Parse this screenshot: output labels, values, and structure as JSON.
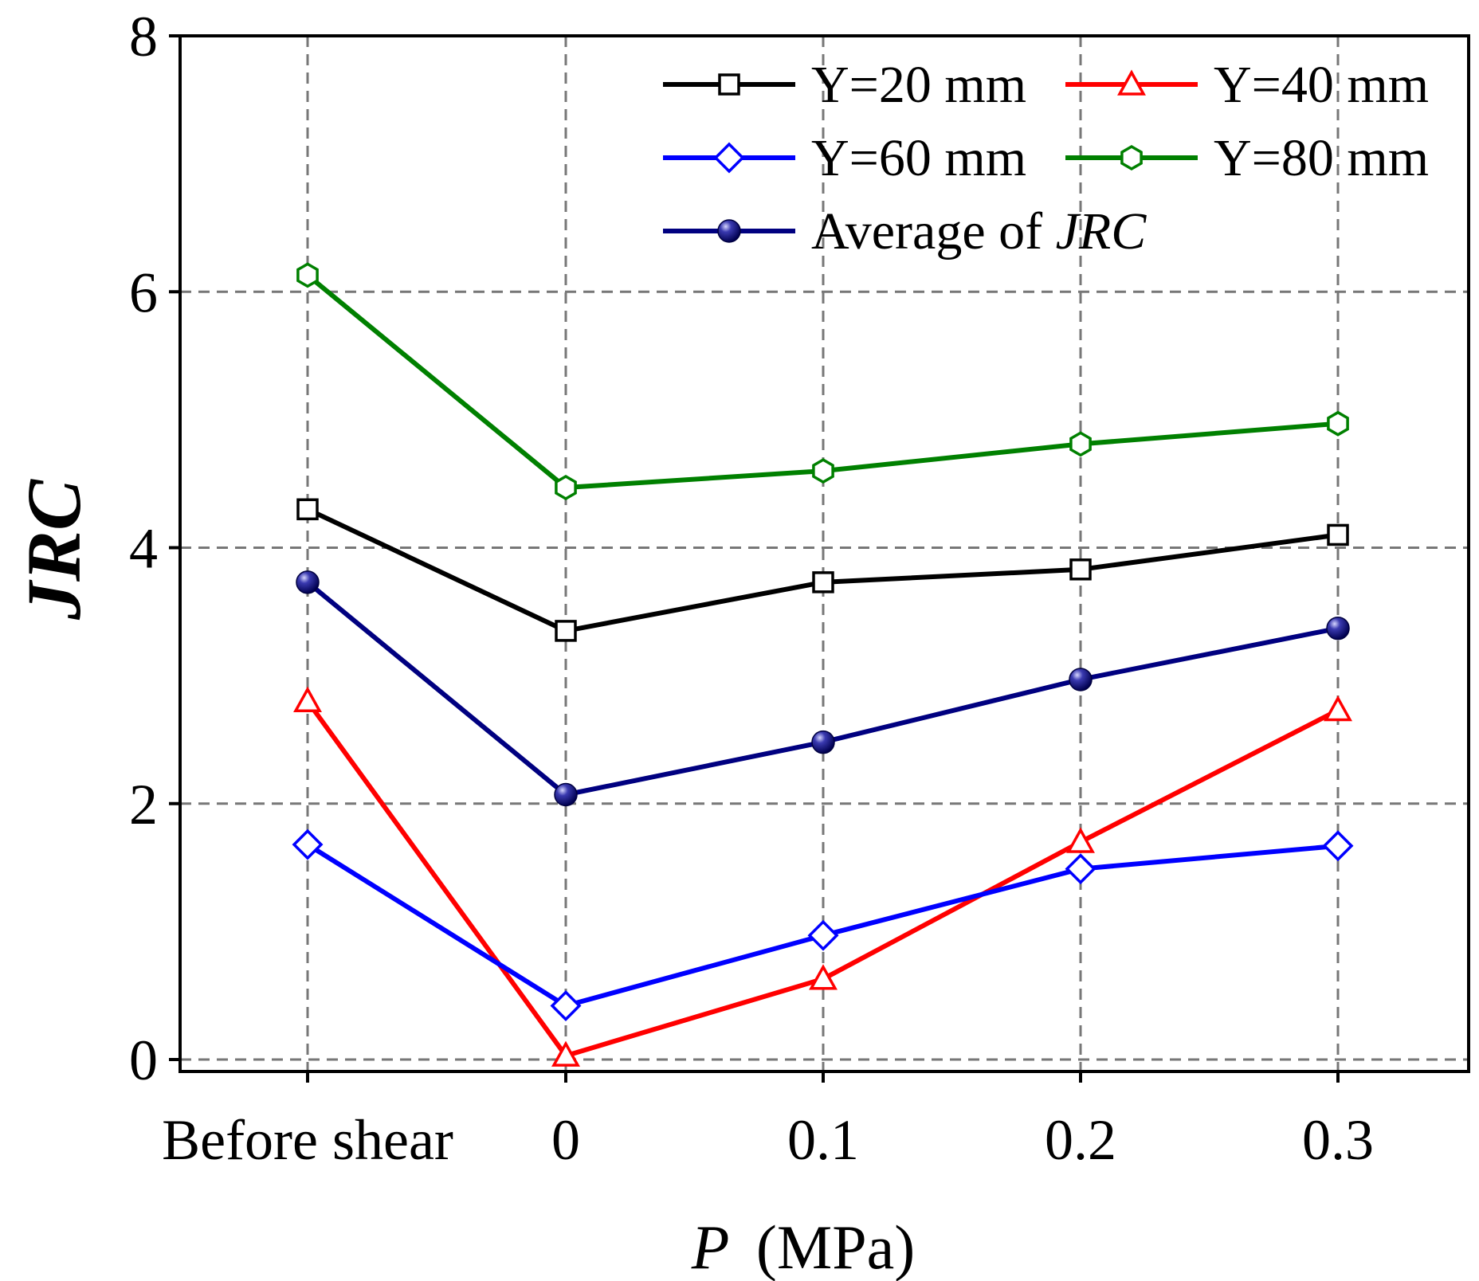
{
  "chart_data": {
    "type": "line",
    "title": "",
    "xlabel": "(MPa)",
    "xlabel_var": "P",
    "ylabel": "JRC",
    "categories": [
      "Before shear",
      "0",
      "0.1",
      "0.2",
      "0.3"
    ],
    "ylim": [
      0,
      8
    ],
    "yticks": [
      "0",
      "2",
      "4",
      "6",
      "8"
    ],
    "grid": true,
    "legend_position": "top-right",
    "series": [
      {
        "name": "Y=20 mm",
        "color": "#000000",
        "marker": "square",
        "fill": "#ffffff",
        "values": [
          4.3,
          3.35,
          3.73,
          3.83,
          4.1
        ]
      },
      {
        "name": "Y=40 mm",
        "color": "#ff0000",
        "marker": "triangle",
        "fill": "#ffffff",
        "values": [
          2.8,
          0.03,
          0.63,
          1.7,
          2.73
        ]
      },
      {
        "name": "Y=60 mm",
        "color": "#0000ff",
        "marker": "diamond",
        "fill": "#ffffff",
        "values": [
          1.68,
          0.42,
          0.97,
          1.49,
          1.67
        ]
      },
      {
        "name": "Y=80 mm",
        "color": "#008000",
        "marker": "hexagon",
        "fill": "#ffffff",
        "values": [
          6.13,
          4.47,
          4.6,
          4.81,
          4.97
        ]
      },
      {
        "name": "Average of ",
        "name_italic": "JRC",
        "color": "#000080",
        "marker": "ball",
        "fill": "#000080",
        "values": [
          3.73,
          2.07,
          2.48,
          2.97,
          3.37
        ]
      }
    ]
  }
}
